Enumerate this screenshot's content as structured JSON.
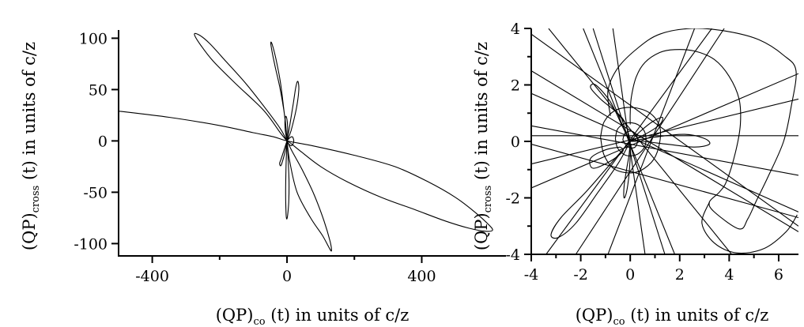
{
  "chart_data": [
    {
      "type": "line",
      "xlabel_main": "(QP)",
      "xlabel_sub": "co",
      "xlabel_rest": " (t) in units of c/z",
      "ylabel_main": "(QP)",
      "ylabel_sub": "cross",
      "ylabel_rest": " (t) in units of c/z",
      "xlim": [
        -500,
        650
      ],
      "ylim": [
        -112,
        108
      ],
      "xticks": [
        -400,
        0,
        400
      ],
      "xtick_labels": [
        "-400",
        "0",
        "400"
      ],
      "xminor": [
        -200,
        200
      ],
      "yticks": [
        -100,
        -50,
        0,
        50,
        100
      ],
      "ytick_labels": [
        "-100",
        "-50",
        "0",
        "50",
        "100"
      ],
      "series": [
        {
          "values": [
            [
              -500,
              29
            ],
            [
              -350,
              23
            ],
            [
              -200,
              15
            ],
            [
              -100,
              8
            ],
            [
              -40,
              4
            ],
            [
              0,
              0
            ],
            [
              80,
              -5
            ],
            [
              200,
              -14
            ],
            [
              320,
              -25
            ],
            [
              420,
              -40
            ],
            [
              500,
              -55
            ],
            [
              560,
              -70
            ],
            [
              600,
              -82
            ],
            [
              610,
              -87
            ],
            [
              590,
              -88
            ],
            [
              540,
              -85
            ],
            [
              470,
              -78
            ],
            [
              380,
              -67
            ],
            [
              280,
              -55
            ],
            [
              180,
              -40
            ],
            [
              100,
              -25
            ],
            [
              40,
              -10
            ],
            [
              10,
              -2
            ],
            [
              0,
              0
            ]
          ]
        },
        {
          "values": [
            [
              0,
              0
            ],
            [
              -20,
              8
            ],
            [
              -70,
              30
            ],
            [
              -150,
              55
            ],
            [
              -220,
              78
            ],
            [
              -260,
              95
            ],
            [
              -275,
              104
            ],
            [
              -260,
              103
            ],
            [
              -230,
              95
            ],
            [
              -180,
              77
            ],
            [
              -120,
              55
            ],
            [
              -60,
              30
            ],
            [
              -20,
              12
            ],
            [
              0,
              0
            ]
          ]
        },
        {
          "values": [
            [
              0,
              0
            ],
            [
              8,
              -20
            ],
            [
              30,
              -50
            ],
            [
              70,
              -75
            ],
            [
              105,
              -92
            ],
            [
              125,
              -104
            ],
            [
              132,
              -107
            ],
            [
              128,
              -98
            ],
            [
              110,
              -78
            ],
            [
              80,
              -52
            ],
            [
              45,
              -28
            ],
            [
              15,
              -10
            ],
            [
              0,
              0
            ]
          ]
        },
        {
          "values": [
            [
              0,
              0
            ],
            [
              -6,
              22
            ],
            [
              -20,
              50
            ],
            [
              -35,
              72
            ],
            [
              -45,
              88
            ],
            [
              -48,
              96
            ],
            [
              -43,
              93
            ],
            [
              -33,
              80
            ],
            [
              -20,
              58
            ],
            [
              -10,
              32
            ],
            [
              -3,
              12
            ],
            [
              0,
              0
            ]
          ]
        },
        {
          "values": [
            [
              0,
              0
            ],
            [
              3,
              -15
            ],
            [
              6,
              -40
            ],
            [
              5,
              -60
            ],
            [
              2,
              -72
            ],
            [
              -1,
              -76
            ],
            [
              -3,
              -70
            ],
            [
              -4,
              -50
            ],
            [
              -3,
              -25
            ],
            [
              -1,
              -8
            ],
            [
              0,
              0
            ]
          ]
        },
        {
          "values": [
            [
              0,
              0
            ],
            [
              12,
              10
            ],
            [
              28,
              32
            ],
            [
              35,
              50
            ],
            [
              32,
              58
            ],
            [
              26,
              52
            ],
            [
              18,
              35
            ],
            [
              8,
              15
            ],
            [
              0,
              0
            ]
          ]
        },
        {
          "values": [
            [
              0,
              0
            ],
            [
              -8,
              -8
            ],
            [
              -18,
              -18
            ],
            [
              -22,
              -22
            ],
            [
              -18,
              -24
            ],
            [
              -10,
              -16
            ],
            [
              -3,
              -6
            ],
            [
              0,
              0
            ]
          ]
        },
        {
          "values": [
            [
              0,
              0
            ],
            [
              8,
              3
            ],
            [
              16,
              4
            ],
            [
              20,
              0
            ],
            [
              16,
              -4
            ],
            [
              8,
              -4
            ],
            [
              0,
              0
            ]
          ]
        },
        {
          "values": [
            [
              0,
              0
            ],
            [
              -5,
              10
            ],
            [
              -6,
              20
            ],
            [
              -3,
              24
            ],
            [
              1,
              18
            ],
            [
              2,
              8
            ],
            [
              0,
              0
            ]
          ]
        }
      ]
    },
    {
      "type": "line",
      "xlabel_main": "(QP)",
      "xlabel_sub": "co",
      "xlabel_rest": " (t) in units of c/z",
      "ylabel_main": "(QP)",
      "ylabel_sub": "cross",
      "ylabel_rest": " (t) in units of c/z",
      "xlim": [
        -4,
        6.8
      ],
      "ylim": [
        -4,
        4
      ],
      "xticks": [
        -4,
        -2,
        0,
        2,
        4,
        6
      ],
      "xtick_labels": [
        "-4",
        "-2",
        "0",
        "2",
        "4",
        "6"
      ],
      "xminor": [
        -3,
        -1,
        1,
        3,
        5
      ],
      "yticks": [
        -4,
        -2,
        0,
        2,
        4
      ],
      "ytick_labels": [
        "-4",
        "-2",
        "0",
        "2",
        "4"
      ],
      "yminor": [
        -3,
        -1,
        1,
        3
      ],
      "lines": [
        [
          [
            -4,
            0.55
          ],
          [
            6.8,
            -1.2
          ]
        ],
        [
          [
            -4,
            0.2
          ],
          [
            6.8,
            0.2
          ]
        ],
        [
          [
            -4,
            -0.8
          ],
          [
            6.8,
            1.5
          ]
        ],
        [
          [
            -4,
            -1.65
          ],
          [
            6.8,
            2.4
          ]
        ],
        [
          [
            -4,
            1.7
          ],
          [
            6.8,
            -2.5
          ]
        ],
        [
          [
            -4,
            2.5
          ],
          [
            6.8,
            -3.2
          ]
        ],
        [
          [
            -3.3,
            4
          ],
          [
            4.1,
            -4
          ]
        ],
        [
          [
            -1.9,
            4
          ],
          [
            1.8,
            -4
          ]
        ],
        [
          [
            -3.4,
            -4
          ],
          [
            3.3,
            4
          ]
        ],
        [
          [
            -0.9,
            -4
          ],
          [
            2.6,
            4
          ]
        ],
        [
          [
            0.6,
            -4
          ],
          [
            -0.7,
            4
          ]
        ],
        [
          [
            1.4,
            -4
          ],
          [
            -1.5,
            4
          ]
        ],
        [
          [
            -2.2,
            -4
          ],
          [
            3.8,
            4
          ]
        ],
        [
          [
            -4,
            -0.1
          ],
          [
            6.8,
            -2.7
          ]
        ],
        [
          [
            -4,
            3.8
          ],
          [
            6.8,
            -3.0
          ]
        ]
      ],
      "series": [
        {
          "values": [
            [
              0,
              0
            ],
            [
              -0.3,
              0.8
            ],
            [
              -1.2,
              1.5
            ],
            [
              -1.6,
              1.9
            ],
            [
              -1.4,
              2.0
            ],
            [
              -0.8,
              1.4
            ],
            [
              -0.3,
              0.5
            ],
            [
              0,
              0
            ]
          ]
        },
        {
          "values": [
            [
              0,
              0
            ],
            [
              1.0,
              0.15
            ],
            [
              2.2,
              0.25
            ],
            [
              3.0,
              0.1
            ],
            [
              3.2,
              -0.1
            ],
            [
              2.6,
              -0.2
            ],
            [
              1.5,
              -0.1
            ],
            [
              0.5,
              0
            ],
            [
              0,
              0
            ]
          ]
        },
        {
          "values": [
            [
              0,
              0
            ],
            [
              -0.5,
              -0.8
            ],
            [
              -1.3,
              -1.8
            ],
            [
              -2.2,
              -2.9
            ],
            [
              -2.9,
              -3.4
            ],
            [
              -3.2,
              -3.3
            ],
            [
              -2.8,
              -2.7
            ],
            [
              -1.8,
              -1.8
            ],
            [
              -0.8,
              -0.8
            ],
            [
              0,
              0
            ]
          ]
        },
        {
          "values": [
            [
              0,
              0
            ],
            [
              -0.05,
              -0.5
            ],
            [
              -0.15,
              -1.0
            ],
            [
              -0.25,
              -1.6
            ],
            [
              -0.25,
              -2.0
            ],
            [
              -0.15,
              -1.8
            ],
            [
              -0.05,
              -1.2
            ],
            [
              0,
              -0.5
            ],
            [
              0,
              0
            ]
          ]
        },
        {
          "values": [
            [
              0,
              0
            ],
            [
              0.4,
              0.35
            ],
            [
              0.9,
              0.7
            ],
            [
              1.3,
              0.85
            ],
            [
              1.2,
              0.6
            ],
            [
              0.7,
              0.3
            ],
            [
              0,
              0
            ]
          ]
        },
        {
          "values": [
            [
              -0.4,
              -0.2
            ],
            [
              -1.0,
              -0.3
            ],
            [
              -1.6,
              -0.6
            ],
            [
              -1.5,
              -0.95
            ],
            [
              -0.8,
              -0.7
            ],
            [
              -0.3,
              -0.35
            ],
            [
              -0.4,
              -0.2
            ]
          ]
        },
        {
          "values": [
            [
              -1.2,
              0.15
            ],
            [
              -1.05,
              0.7
            ],
            [
              -0.6,
              1.1
            ],
            [
              0.1,
              1.2
            ],
            [
              0.8,
              1.0
            ],
            [
              1.2,
              0.5
            ],
            [
              1.15,
              -0.2
            ],
            [
              0.85,
              -0.75
            ],
            [
              0.2,
              -1.1
            ],
            [
              -0.6,
              -1.0
            ],
            [
              -1.05,
              -0.5
            ],
            [
              -1.2,
              0.15
            ]
          ]
        },
        {
          "values": [
            [
              -0.6,
              0.1
            ],
            [
              -0.5,
              0.45
            ],
            [
              -0.15,
              0.65
            ],
            [
              0.3,
              0.6
            ],
            [
              0.6,
              0.3
            ],
            [
              0.6,
              -0.15
            ],
            [
              0.3,
              -0.45
            ],
            [
              -0.15,
              -0.5
            ],
            [
              -0.5,
              -0.25
            ],
            [
              -0.6,
              0.1
            ]
          ]
        },
        {
          "values": [
            [
              -0.3,
              0.05
            ],
            [
              -0.2,
              0.3
            ],
            [
              0.1,
              0.35
            ],
            [
              0.3,
              0.1
            ],
            [
              0.2,
              -0.2
            ],
            [
              -0.1,
              -0.2
            ],
            [
              -0.3,
              0.05
            ]
          ]
        },
        {
          "values": [
            [
              -0.8,
              0.9
            ],
            [
              -0.9,
              1.8
            ],
            [
              -0.5,
              2.6
            ],
            [
              0.3,
              3.3
            ],
            [
              1.2,
              3.8
            ],
            [
              2.5,
              4.0
            ],
            [
              3.9,
              3.9
            ],
            [
              5.2,
              3.6
            ],
            [
              6.2,
              3.05
            ],
            [
              6.7,
              2.5
            ],
            [
              6.5,
              1.2
            ],
            [
              6.2,
              0.0
            ],
            [
              5.6,
              -1.2
            ],
            [
              5.1,
              -2.1
            ],
            [
              4.75,
              -2.75
            ],
            [
              4.4,
              -3.1
            ],
            [
              3.4,
              -2.5
            ],
            [
              3.2,
              -2.15
            ],
            [
              3.6,
              -1.8
            ],
            [
              3.9,
              -1.4
            ],
            [
              4.25,
              -0.4
            ],
            [
              4.45,
              0.6
            ],
            [
              4.4,
              1.5
            ],
            [
              4.0,
              2.3
            ],
            [
              3.4,
              2.9
            ],
            [
              2.6,
              3.2
            ],
            [
              1.8,
              3.25
            ],
            [
              1.2,
              3.15
            ],
            [
              0.6,
              2.8
            ],
            [
              0.25,
              2.3
            ],
            [
              0.05,
              1.6
            ],
            [
              0.0,
              1.0
            ],
            [
              0.0,
              0.6
            ]
          ]
        },
        {
          "values": [
            [
              3.2,
              -2.15
            ],
            [
              2.9,
              -2.9
            ],
            [
              3.4,
              -3.6
            ],
            [
              4.3,
              -3.95
            ],
            [
              5.4,
              -3.8
            ],
            [
              6.3,
              -3.2
            ],
            [
              6.75,
              -2.6
            ]
          ]
        }
      ]
    }
  ]
}
